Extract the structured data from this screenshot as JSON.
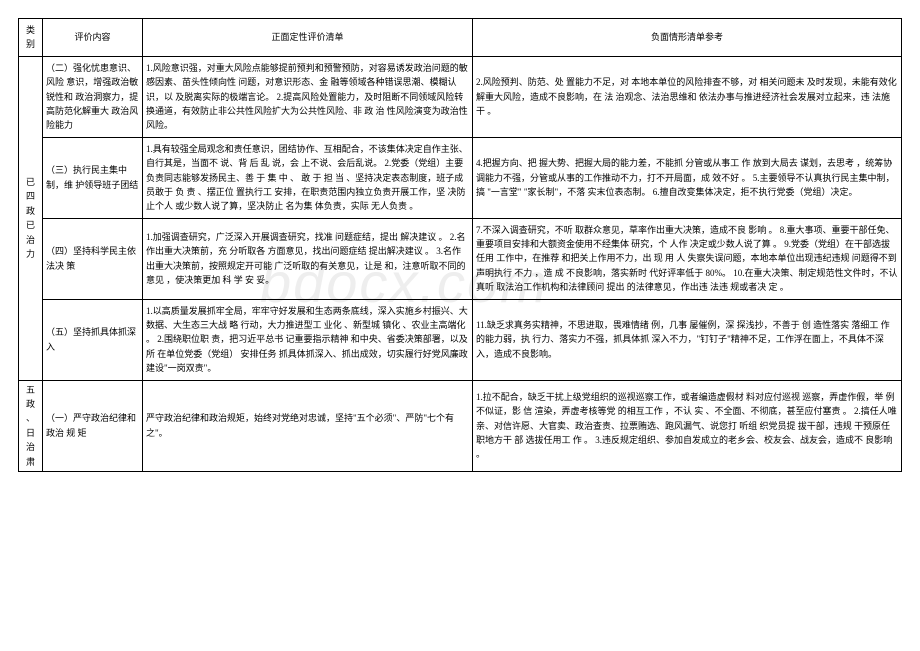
{
  "watermark": "bdocx.com",
  "header": {
    "category": "类别",
    "eval_content": "评价内容",
    "positive_list": "正面定性评价清单",
    "negative_list": "负面情形清单参考"
  },
  "rows": [
    {
      "cat": "",
      "eval": "（二）强化忧患意识、风险 意识，增强政治敏锐性和 政治洞察力，提高防范化解重大 政治风险能力",
      "pos": "1.风险意识强，对重大风险点能够提前预判和预警预防，对容易诱发政治问题的敏感因素、苗头性倾向性 问题，对意识形态、金 融等领域各种错误思潮、模糊认识，以 及脱离实际的极端言论。\n2.提高风险处置能力，及时阻断不同领域风险转换通道，有效防止非公共性风险扩大为公共性风险、非 政 治 性风险演变为政治性风险。",
      "neg": "2.风险预判、防范、处 置能力不足，对 本地本单位的风险排查不够，对 相关问题未 及时发现，未能有效化解重大风险，造成不良影响，在 法  治观念、法治思维和 依法办事与推进经济社会发展对立起来，违 法施干 。"
    },
    {
      "cat": "",
      "eval": "（三）执行民主集中制，维 护领导班子团结",
      "pos": "1.具有较强全局观念和责任意识，团结协作、互相配合，不该集体决定自作主张、自行其是，当面不 说、背 后 乱 说，会 上不说、会后乱说。\n2.党委（党组）主要负责同志能够发扬民主、善 于 集 中 、 敢 于 担 当 、坚持决定表态制度，班子成员敢于 负 责 、摆正位 置执行工 安排，在职责范围内独立负责开展工作，坚 决防止个人 或少数人说了算，坚决防止 名为集  体负责，实际 无人负责 。",
      "neg": "4.把握方向、把 握大势、把握大局的能力差，不能抓 分管或从事工 作 放到大局去 谋划，去思考 ，统筹协调能力不强，分管或从事的工作推动不力，打不开局面，成 效不好 。\n5.主要领导不认真执行民主集中制，搞 \"一言堂\"  \"家长制\"，不落  实末位表态制。\n6.擅自改变集体决定，拒不执行党委（党组）决定。"
    },
    {
      "cat": "已 四 政 已 治 力",
      "eval": "（四）坚持科学民主依法决 策",
      "pos": "1.加强调查研究，广泛深入开展调查研究，找准 问题症结，提出 解决建议 。\n2.名作出重大决策前，充 分听取各 方面意见，找出问题症结 提出解决建议 。\n3.名作出重大决策前，按照规定开可能 广泛听取的有关意见，让是 和，注意听取不同的意见 ，使决策更加 科 学 安 妥。",
      "neg": "7.不深入调查研究，不听 取群众意见，草率作出重大决策，造成不良 影响 。\n8.重大事项、重要干部任免、重要项目安排和大额资金使用不经集体 研究，个 人作 决定或少数人说了算 。\n9.党委（党组）在干部选拔任用 工作中，在推荐 和把关上作用不力，出 现 用 人 失察失误问题，本地本单位出现违纪违规 问题得不到声明执行 不力 ，造 成 不良影响，落实新时 代好评率低于 80%。\n10.在重大决策、制定规范性文件时，不认真听 取法治工作机构和法律顾问 提出 的法律意见，作出违 法违 规或者决 定 。"
    },
    {
      "cat": "",
      "eval": "（五）坚持抓具体抓深入",
      "pos": "1.以高质量发展抓牢全局，牢牢守好发展和生态两条底线，深入实施乡村振兴、大数据、大生态三大战 略 行动，大力推进型工 业化 、新型城 镇化 、农业主高端化 。\n2.围绕职位职 责，把习近平总书 记重要指示精神 和中央、省委决策部署，以及所 在单位党委（党组） 安排任务  抓具体抓深入、抓出成效，切实履行好党风廉政建设\"一岗双责\"。",
      "neg": "11.缺乏求真务实精神，不思进取，畏难情绪 例，几事 屡催例，深 探浅抄，不善于  创  造性落实 落细工 作的能力弱，执 行力、落实力不强，抓具体抓  深入不力，\"钉钉子\"精神不足，工作浮在面上，不具体不深入，造成不良影响。"
    },
    {
      "cat": "五 政 、 日 治 肃",
      "eval": "（一）严守政治纪律和政治 规 矩",
      "pos": "严守政治纪律和政治规矩，始终对党绝对忠诚，坚持\"五个必须\"、严防\"七个有之\"。",
      "neg": "1.拉不配合，缺乏干扰上级党组织的巡视巡察工作，或者编造虚假材  料对应付巡视 巡察，弄虚作假，举 例不似证，影 信 渲染，弄虚考核等党 的相互工作 ，不认 实  、不全面、不彻底，甚至应付塞责 。\n2.搞任人唯亲、对信许愿、大官卖、政治查责、拉票贿选、跑风漏气、说您打 听组 织党员提 拔干部，违规 干预原任职地方干 部 选拔任用工 作 。\n3.违反规定组织、参加自发成立的老乡会、校友会、战友会，造成不 良影响 。"
    }
  ]
}
